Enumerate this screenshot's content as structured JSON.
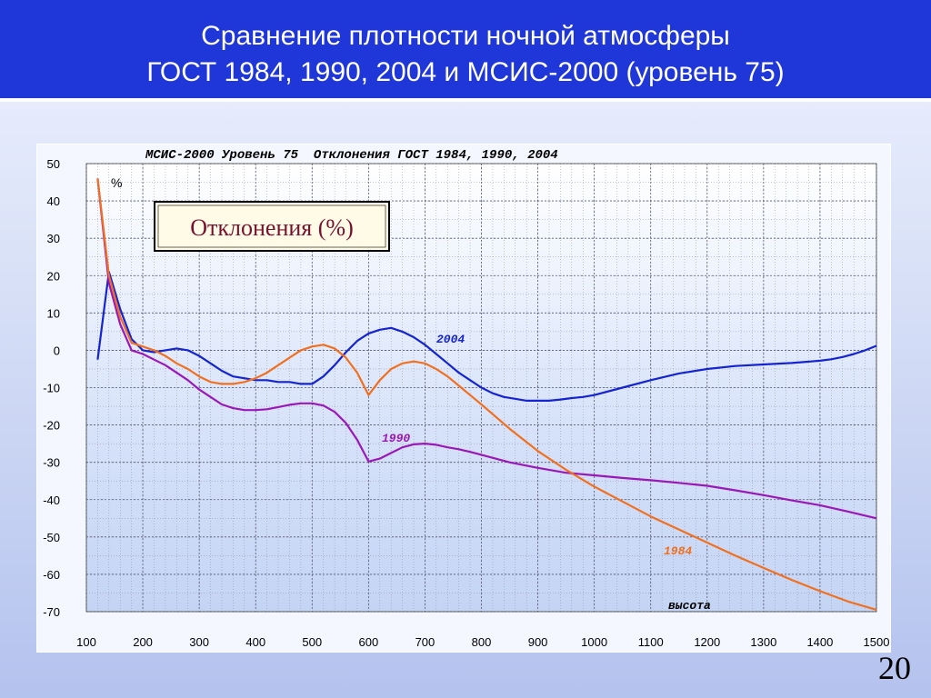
{
  "slide": {
    "title_line1": "Сравнение плотности ночной атмосферы",
    "title_line2": "ГОСТ 1984, 1990, 2004 и МСИС-2000 (уровень 75)",
    "page_number": "20"
  },
  "colors": {
    "header": "#1f36d9",
    "series_1984": "#f07020",
    "series_1990": "#9a18b8",
    "series_2004": "#1424d0",
    "inset_text": "#7a1030"
  },
  "chart_data": {
    "type": "line",
    "title": "МСИС-2000 Уровень 75  Отклонения ГОСТ 1984, 1990, 2004",
    "inset_label": "Отклонения (%)",
    "ylabel": "%",
    "xlabel": "высота",
    "xlim": [
      100,
      1500
    ],
    "ylim": [
      -70,
      50
    ],
    "x_ticks": [
      100,
      200,
      300,
      400,
      500,
      600,
      700,
      800,
      900,
      1000,
      1100,
      1200,
      1300,
      1400,
      1500
    ],
    "y_ticks": [
      50,
      40,
      30,
      20,
      10,
      0,
      -10,
      -20,
      -30,
      -40,
      -50,
      -60,
      -70
    ],
    "grid": true,
    "series": [
      {
        "name": "2004",
        "color": "#1424d0",
        "x": [
          120,
          140,
          160,
          180,
          200,
          220,
          240,
          260,
          280,
          300,
          320,
          340,
          360,
          380,
          400,
          420,
          440,
          460,
          480,
          500,
          520,
          540,
          560,
          580,
          600,
          620,
          640,
          660,
          680,
          700,
          720,
          740,
          760,
          780,
          800,
          820,
          840,
          860,
          880,
          900,
          920,
          940,
          960,
          980,
          1000,
          1050,
          1100,
          1150,
          1200,
          1250,
          1300,
          1350,
          1400,
          1420,
          1440,
          1460,
          1480,
          1500
        ],
        "y": [
          -2.5,
          21,
          11,
          3,
          0,
          -0.5,
          0,
          0.5,
          0,
          -1.5,
          -3.5,
          -5.5,
          -7,
          -7.5,
          -8,
          -8,
          -8.5,
          -8.5,
          -9,
          -9,
          -7,
          -4,
          -0.5,
          2.5,
          4.5,
          5.5,
          6,
          5,
          3.5,
          1.5,
          -1,
          -3.5,
          -6,
          -8,
          -10,
          -11.5,
          -12.5,
          -13,
          -13.5,
          -13.5,
          -13.5,
          -13.2,
          -12.8,
          -12.5,
          -12,
          -10,
          -8,
          -6.2,
          -5,
          -4.2,
          -3.8,
          -3.4,
          -2.8,
          -2.4,
          -1.8,
          -1,
          0,
          1.2
        ]
      },
      {
        "name": "1990",
        "color": "#9a18b8",
        "x": [
          120,
          140,
          160,
          180,
          200,
          220,
          240,
          260,
          280,
          300,
          320,
          340,
          360,
          380,
          400,
          420,
          440,
          460,
          480,
          500,
          520,
          540,
          560,
          580,
          600,
          620,
          640,
          660,
          680,
          700,
          720,
          740,
          760,
          780,
          800,
          850,
          900,
          950,
          1000,
          1050,
          1100,
          1150,
          1200,
          1250,
          1300,
          1350,
          1400,
          1450,
          1500
        ],
        "y": [
          46,
          18,
          7,
          0,
          -1,
          -2.5,
          -4,
          -6,
          -8,
          -10.5,
          -12.5,
          -14.5,
          -15.5,
          -16,
          -16,
          -15.8,
          -15.2,
          -14.6,
          -14.2,
          -14.2,
          -14.8,
          -16.5,
          -19.5,
          -24,
          -29.8,
          -29,
          -27.5,
          -26,
          -25.2,
          -25,
          -25.3,
          -26,
          -26.5,
          -27.2,
          -28,
          -30,
          -31.5,
          -32.8,
          -33.5,
          -34.2,
          -34.8,
          -35.5,
          -36.3,
          -37.5,
          -38.8,
          -40.2,
          -41.5,
          -43.2,
          -45
        ]
      },
      {
        "name": "1984",
        "color": "#f07020",
        "x": [
          120,
          140,
          160,
          180,
          200,
          220,
          240,
          260,
          280,
          300,
          320,
          340,
          360,
          380,
          400,
          420,
          440,
          460,
          480,
          500,
          520,
          540,
          560,
          580,
          600,
          620,
          640,
          660,
          680,
          700,
          720,
          740,
          760,
          780,
          800,
          850,
          900,
          950,
          1000,
          1050,
          1100,
          1150,
          1200,
          1250,
          1300,
          1350,
          1400,
          1450,
          1500
        ],
        "y": [
          46,
          20,
          9,
          2,
          1,
          0,
          -1.5,
          -3.5,
          -5,
          -7,
          -8.5,
          -9,
          -9,
          -8.5,
          -7.5,
          -6,
          -4,
          -2,
          0,
          1,
          1.5,
          0.5,
          -2,
          -6,
          -12,
          -8,
          -5,
          -3.5,
          -3,
          -3.5,
          -5,
          -7,
          -9.5,
          -12,
          -14.5,
          -21,
          -27,
          -32,
          -36.5,
          -40.5,
          -44.5,
          -48,
          -51.5,
          -55,
          -58.3,
          -61.5,
          -64.5,
          -67.3,
          -69.5
        ]
      }
    ]
  }
}
